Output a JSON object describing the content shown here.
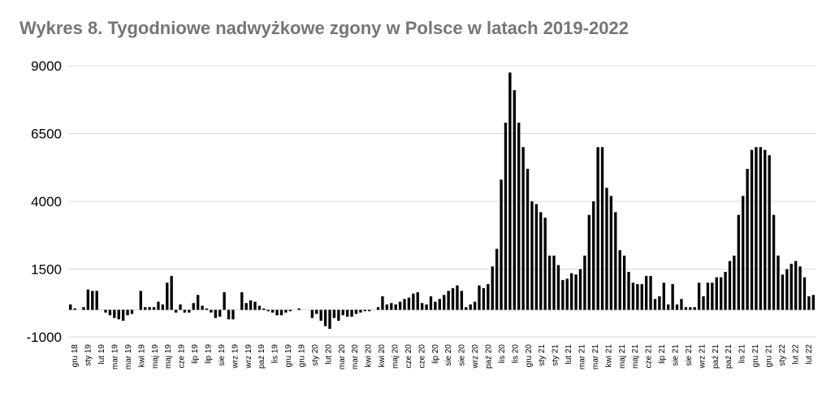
{
  "chart_data": {
    "type": "bar",
    "title": "Wykres 8. Tygodniowe nadwyżkowe zgony w Polsce w latach 2019-2022",
    "xlabel": "",
    "ylabel": "",
    "ylim": [
      -1000,
      9000
    ],
    "y_ticks": [
      9000,
      6500,
      4000,
      1500,
      -1000
    ],
    "grid": true,
    "legend": "none",
    "bar_color": "#000000",
    "grid_color": "#d9d9d9",
    "x_tick_labels": [
      "gru 18",
      "sty 19",
      "lut 19",
      "mar 19",
      "mar 19",
      "kwi 19",
      "maj 19",
      "maj 19",
      "cze 19",
      "lip 19",
      "lip 19",
      "sie 19",
      "wrz 19",
      "wrz 19",
      "paź 19",
      "lis 19",
      "gru 19",
      "gru 19",
      "sty 20",
      "lut 20",
      "mar 20",
      "mar 20",
      "kwi 20",
      "kwi 20",
      "maj 20",
      "cze 20",
      "cze 20",
      "lip 20",
      "sie 20",
      "sie 20",
      "wrz 20",
      "paź 20",
      "lis 20",
      "lis 20",
      "gru 20",
      "sty 21",
      "sty 21",
      "lut 21",
      "mar 21",
      "mar 21",
      "kwi 21",
      "maj 21",
      "maj 21",
      "cze 21",
      "lip 21",
      "sie 21",
      "sie 21",
      "wrz 21",
      "paź 21",
      "paź 21",
      "lis 21",
      "gru 21",
      "gru 21",
      "sty 22",
      "lut 22",
      "lut 22"
    ],
    "values": [
      200,
      50,
      0,
      100,
      750,
      700,
      700,
      0,
      -100,
      -200,
      -300,
      -350,
      -400,
      -200,
      -150,
      0,
      700,
      100,
      100,
      100,
      300,
      200,
      1000,
      1250,
      -100,
      200,
      -100,
      -100,
      250,
      550,
      150,
      50,
      -100,
      -300,
      -250,
      650,
      -350,
      -350,
      0,
      650,
      250,
      350,
      300,
      150,
      50,
      -50,
      -100,
      -200,
      -200,
      -100,
      -50,
      0,
      50,
      0,
      0,
      -300,
      -150,
      -400,
      -600,
      -700,
      -300,
      -400,
      -200,
      -250,
      -250,
      -150,
      -100,
      -50,
      -50,
      0,
      100,
      500,
      200,
      250,
      200,
      300,
      400,
      450,
      600,
      650,
      250,
      200,
      500,
      300,
      400,
      550,
      700,
      800,
      900,
      700,
      100,
      200,
      300,
      900,
      800,
      950,
      1600,
      2250,
      4800,
      6900,
      8750,
      8100,
      6900,
      6000,
      5200,
      4000,
      3900,
      3600,
      3400,
      2000,
      2000,
      1650,
      1100,
      1150,
      1350,
      1300,
      1500,
      2000,
      3500,
      4000,
      6000,
      6000,
      4500,
      4200,
      3600,
      2200,
      2000,
      1400,
      1000,
      950,
      950,
      1250,
      1250,
      400,
      500,
      1000,
      200,
      950,
      200,
      400,
      100,
      100,
      100,
      1000,
      500,
      1000,
      1000,
      1200,
      1200,
      1400,
      1800,
      2000,
      3500,
      4200,
      5200,
      5900,
      6000,
      6000,
      5900,
      5700,
      3500,
      2000,
      1300,
      1500,
      1700,
      1800,
      1600,
      1200,
      500,
      550
    ]
  }
}
